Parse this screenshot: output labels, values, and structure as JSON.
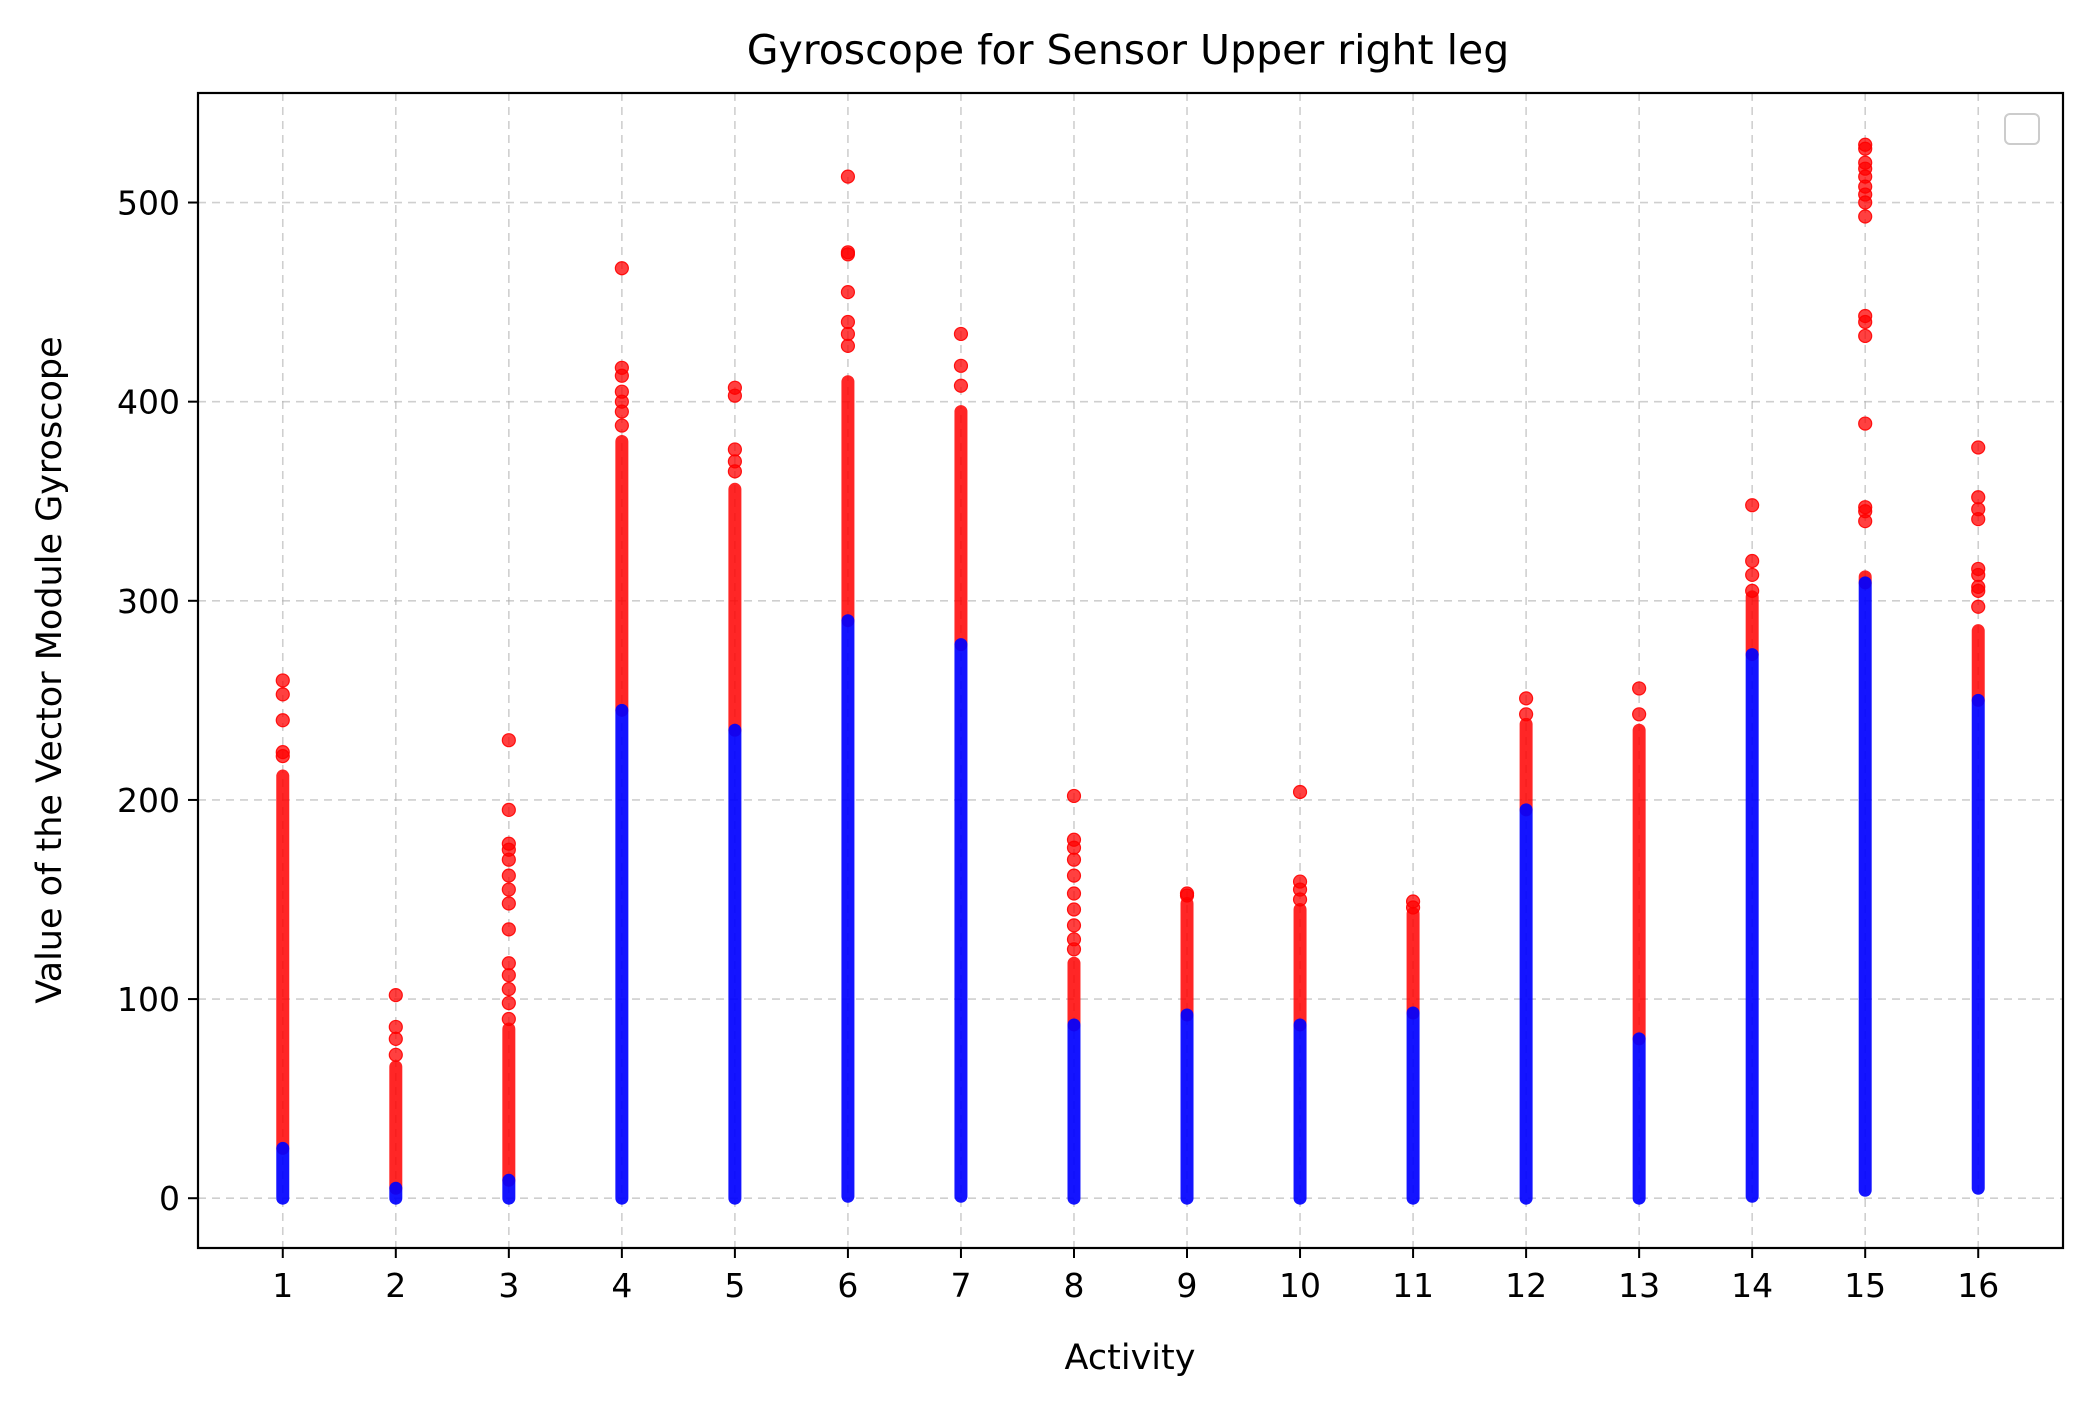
{
  "chart_data": {
    "type": "scatter",
    "title": "Gyroscope for Sensor Upper right leg",
    "xlabel": "Activity",
    "ylabel": "Value of the Vector Module Gyroscope",
    "x_ticks": [
      1,
      2,
      3,
      4,
      5,
      6,
      7,
      8,
      9,
      10,
      11,
      12,
      13,
      14,
      15,
      16
    ],
    "y_ticks": [
      0,
      100,
      200,
      300,
      400,
      500
    ],
    "xlim": [
      0.25,
      16.75
    ],
    "ylim": [
      -25,
      555
    ],
    "grid": true,
    "legend": {
      "placement": "top-right",
      "entries": []
    },
    "colors": {
      "normal": "#0000ff",
      "outlier": "#ff0000"
    },
    "series": [
      {
        "color": "blue",
        "columns": [
          {
            "x": 1,
            "min": 0,
            "max": 25
          },
          {
            "x": 2,
            "min": 0,
            "max": 5
          },
          {
            "x": 3,
            "min": 0,
            "max": 9
          },
          {
            "x": 4,
            "min": 0,
            "max": 245
          },
          {
            "x": 5,
            "min": 0,
            "max": 235
          },
          {
            "x": 6,
            "min": 1,
            "max": 290
          },
          {
            "x": 7,
            "min": 1,
            "max": 278
          },
          {
            "x": 8,
            "min": 0,
            "max": 87
          },
          {
            "x": 9,
            "min": 0,
            "max": 92
          },
          {
            "x": 10,
            "min": 0,
            "max": 87
          },
          {
            "x": 11,
            "min": 0,
            "max": 93
          },
          {
            "x": 12,
            "min": 0,
            "max": 195
          },
          {
            "x": 13,
            "min": 0,
            "max": 80
          },
          {
            "x": 14,
            "min": 1,
            "max": 273
          },
          {
            "x": 15,
            "min": 4,
            "max": 309
          },
          {
            "x": 16,
            "min": 5,
            "max": 250
          }
        ]
      },
      {
        "color": "red",
        "columns": [
          {
            "x": 1,
            "dense_min": 25,
            "dense_max": 212,
            "points": [
              222,
              224,
              240,
              253,
              260
            ]
          },
          {
            "x": 2,
            "dense_min": 5,
            "dense_max": 66,
            "points": [
              72,
              80,
              86,
              102
            ]
          },
          {
            "x": 3,
            "dense_min": 9,
            "dense_max": 85,
            "points": [
              90,
              98,
              105,
              112,
              118,
              135,
              148,
              155,
              162,
              170,
              175,
              178,
              195,
              230
            ]
          },
          {
            "x": 4,
            "dense_min": 245,
            "dense_max": 380,
            "points": [
              388,
              395,
              400,
              405,
              413,
              417,
              467
            ]
          },
          {
            "x": 5,
            "dense_min": 235,
            "dense_max": 356,
            "points": [
              365,
              370,
              376,
              403,
              407
            ]
          },
          {
            "x": 6,
            "dense_min": 290,
            "dense_max": 410,
            "points": [
              428,
              434,
              440,
              455,
              474,
              475,
              513
            ]
          },
          {
            "x": 7,
            "dense_min": 278,
            "dense_max": 395,
            "points": [
              408,
              418,
              434
            ]
          },
          {
            "x": 8,
            "dense_min": 87,
            "dense_max": 118,
            "points": [
              125,
              130,
              137,
              145,
              153,
              162,
              170,
              176,
              180,
              202
            ]
          },
          {
            "x": 9,
            "dense_min": 92,
            "dense_max": 148,
            "points": [
              152,
              153
            ]
          },
          {
            "x": 10,
            "dense_min": 87,
            "dense_max": 145,
            "points": [
              150,
              155,
              159,
              204
            ]
          },
          {
            "x": 11,
            "dense_min": 93,
            "dense_max": 143,
            "points": [
              146,
              149
            ]
          },
          {
            "x": 12,
            "dense_min": 195,
            "dense_max": 238,
            "points": [
              243,
              251
            ]
          },
          {
            "x": 13,
            "dense_min": 80,
            "dense_max": 235,
            "points": [
              243,
              256
            ]
          },
          {
            "x": 14,
            "dense_min": 273,
            "dense_max": 302,
            "points": [
              305,
              313,
              320,
              348
            ]
          },
          {
            "x": 15,
            "dense_min": 309,
            "dense_max": 312,
            "points": [
              340,
              345,
              347,
              389,
              433,
              440,
              443,
              493,
              500,
              504,
              508,
              513,
              517,
              520,
              527,
              529
            ]
          },
          {
            "x": 16,
            "dense_min": 250,
            "dense_max": 285,
            "points": [
              297,
              305,
              307,
              313,
              316,
              341,
              346,
              352,
              377
            ]
          }
        ]
      }
    ]
  }
}
